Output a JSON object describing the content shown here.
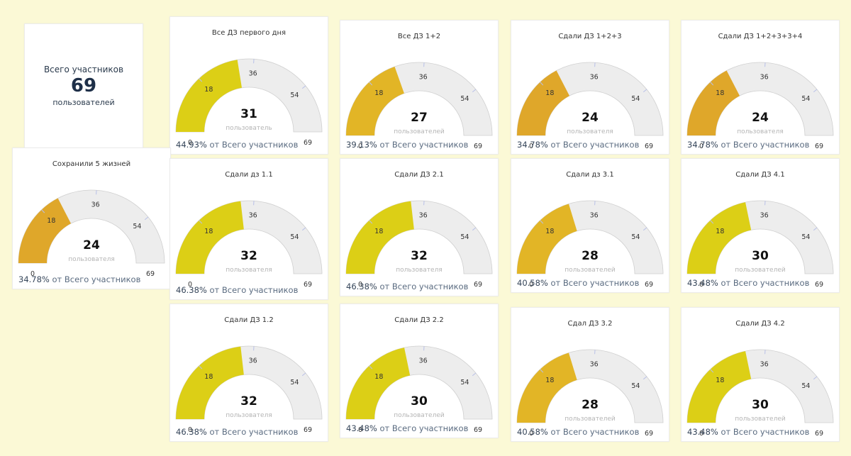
{
  "kpi": {
    "label": "Всего участников",
    "value": "69",
    "unit": "пользователей"
  },
  "gauge_ticks": [
    "0",
    "18",
    "36",
    "54",
    "69"
  ],
  "pct_suffix": "от Всего участников",
  "colors": {
    "background": "#fbf9d6",
    "track": "#ededed",
    "fill_yellow": "#dccf16",
    "fill_orange": "#dfa72a"
  },
  "chart_data": {
    "type": "gauge",
    "min": 0,
    "max": 69,
    "ticks": [
      0,
      18,
      36,
      54,
      69
    ],
    "gauges": [
      {
        "title": "Все ДЗ первого дня",
        "value": 31,
        "value_label": "31",
        "unit": "пользователь",
        "pct": "44.93%",
        "color": "#dccf16"
      },
      {
        "title": "Все ДЗ 1+2",
        "value": 27,
        "value_label": "27",
        "unit": "пользователей",
        "pct": "39.13%",
        "color": "#e2b526"
      },
      {
        "title": "Сдали ДЗ 1+2+3",
        "value": 24,
        "value_label": "24",
        "unit": "пользователя",
        "pct": "34.78%",
        "color": "#dfa72a"
      },
      {
        "title": "Сдали ДЗ 1+2+3+3+4",
        "value": 24,
        "value_label": "24",
        "unit": "пользователя",
        "pct": "34.78%",
        "color": "#dfa72a"
      },
      {
        "title": "Сохранили 5 жизней",
        "value": 24,
        "value_label": "24",
        "unit": "пользователя",
        "pct": "34.78%",
        "color": "#dfa72a"
      },
      {
        "title": "Сдали дз 1.1",
        "value": 32,
        "value_label": "32",
        "unit": "пользователя",
        "pct": "46.38%",
        "color": "#dccf16"
      },
      {
        "title": "Сдали ДЗ 2.1",
        "value": 32,
        "value_label": "32",
        "unit": "пользователя",
        "pct": "46.38%",
        "color": "#dccf16"
      },
      {
        "title": "Сдали дз 3.1",
        "value": 28,
        "value_label": "28",
        "unit": "пользователей",
        "pct": "40.58%",
        "color": "#e2b526"
      },
      {
        "title": "Сдали ДЗ 4.1",
        "value": 30,
        "value_label": "30",
        "unit": "пользователей",
        "pct": "43.48%",
        "color": "#dccf16"
      },
      {
        "title": "Сдали ДЗ 1.2",
        "value": 32,
        "value_label": "32",
        "unit": "пользователя",
        "pct": "46.38%",
        "color": "#dccf16"
      },
      {
        "title": "Сдали ДЗ 2.2",
        "value": 30,
        "value_label": "30",
        "unit": "пользователей",
        "pct": "43.48%",
        "color": "#dccf16"
      },
      {
        "title": "Сдал ДЗ 3.2",
        "value": 28,
        "value_label": "28",
        "unit": "пользователей",
        "pct": "40.58%",
        "color": "#e2b526"
      },
      {
        "title": "Сдали ДЗ 4.2",
        "value": 30,
        "value_label": "30",
        "unit": "пользователей",
        "pct": "43.48%",
        "color": "#dccf16"
      }
    ]
  }
}
